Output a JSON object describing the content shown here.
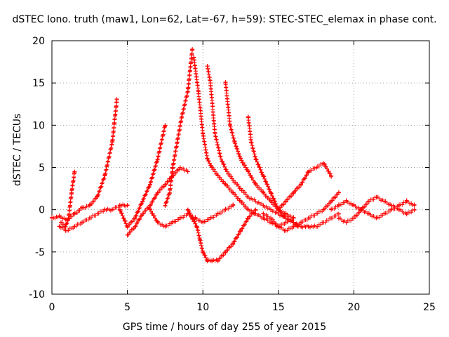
{
  "chart_data": {
    "type": "scatter",
    "title": "dSTEC Iono. truth (maw1, Lon=62, Lat=-67, h=59): STEC-STEC_elemax in phase cont.",
    "xlabel": "GPS time / hours of day 255 of year 2015",
    "ylabel": "dSTEC  / TECUs",
    "xlim": [
      0,
      25
    ],
    "ylim": [
      -10,
      20
    ],
    "xticks": [
      "0",
      "5",
      "10",
      "15",
      "20",
      "25"
    ],
    "yticks": [
      "-10",
      "-5",
      "0",
      "5",
      "10",
      "15",
      "20"
    ],
    "grid": true,
    "marker": "+",
    "color": "#ff0000",
    "series": [
      {
        "x": [
          0.0,
          0.5,
          1.0,
          1.5,
          2.0,
          2.5,
          3.0,
          3.5,
          4.0,
          4.3
        ],
        "y": [
          -1.0,
          -0.8,
          -1.2,
          -0.5,
          0.2,
          0.5,
          1.5,
          4.0,
          8.0,
          13.0
        ]
      },
      {
        "x": [
          0.6,
          0.9,
          1.1,
          1.3,
          1.5
        ],
        "y": [
          -1.5,
          -2.0,
          -1.0,
          2.0,
          4.5
        ]
      },
      {
        "x": [
          0.5,
          1.0,
          1.5,
          2.0,
          2.5,
          3.0,
          3.5,
          4.0,
          4.5,
          5.0
        ],
        "y": [
          -2.0,
          -2.5,
          -2.0,
          -1.5,
          -1.0,
          -0.5,
          0.0,
          0.0,
          0.5,
          0.5
        ]
      },
      {
        "x": [
          4.5,
          5.0,
          5.5,
          6.0,
          6.5,
          7.0,
          7.5
        ],
        "y": [
          0.0,
          -2.0,
          -1.0,
          1.0,
          3.0,
          6.0,
          10.0
        ]
      },
      {
        "x": [
          5.0,
          5.5,
          6.0,
          6.5,
          7.0,
          7.5,
          8.0,
          8.5,
          9.0
        ],
        "y": [
          -3.0,
          -2.0,
          -0.5,
          0.5,
          2.0,
          3.0,
          4.0,
          5.0,
          4.5
        ]
      },
      {
        "x": [
          6.5,
          7.0,
          7.5,
          8.0,
          8.5,
          9.0,
          9.5,
          10.0,
          10.5,
          11.0,
          11.5,
          12.0
        ],
        "y": [
          0.0,
          -1.5,
          -2.0,
          -1.5,
          -1.0,
          -0.5,
          -1.0,
          -1.5,
          -1.0,
          -0.5,
          0.0,
          0.5
        ]
      },
      {
        "x": [
          7.5,
          7.8,
          8.0,
          8.3,
          8.6,
          9.0,
          9.3
        ],
        "y": [
          0.5,
          2.0,
          5.0,
          8.0,
          11.0,
          14.0,
          19.0
        ]
      },
      {
        "x": [
          9.4,
          9.7,
          10.0,
          10.3,
          10.6,
          11.0,
          11.5,
          12.0,
          12.5,
          13.0,
          13.5,
          14.0,
          14.5,
          15.0,
          15.5,
          16.0
        ],
        "y": [
          18.0,
          14.0,
          9.0,
          6.0,
          5.0,
          4.0,
          3.0,
          2.0,
          1.0,
          0.0,
          -0.5,
          -1.0,
          -1.5,
          -2.0,
          -1.5,
          -1.0
        ]
      },
      {
        "x": [
          9.0,
          9.3,
          9.6,
          9.8,
          10.0,
          10.3,
          10.6,
          11.0,
          11.5,
          12.0,
          12.5,
          13.0,
          13.5
        ],
        "y": [
          0.0,
          -1.0,
          -2.0,
          -3.5,
          -5.0,
          -6.0,
          -6.0,
          -6.0,
          -5.0,
          -4.0,
          -2.5,
          -1.0,
          0.0
        ]
      },
      {
        "x": [
          10.3,
          10.5,
          10.8,
          11.2,
          11.6,
          12.0,
          12.5,
          13.0,
          13.5,
          14.0,
          14.5,
          15.0,
          15.5,
          16.0,
          16.3
        ],
        "y": [
          17.0,
          15.0,
          9.0,
          6.0,
          4.5,
          3.5,
          2.5,
          1.5,
          1.0,
          0.5,
          0.0,
          -0.5,
          -1.0,
          -1.5,
          -2.0
        ]
      },
      {
        "x": [
          11.5,
          11.8,
          12.1,
          12.5,
          13.0,
          13.5,
          14.0,
          14.5,
          15.0,
          15.5,
          16.0
        ],
        "y": [
          15.0,
          10.0,
          8.0,
          6.0,
          4.5,
          3.0,
          2.0,
          1.0,
          0.0,
          -0.5,
          -1.0
        ]
      },
      {
        "x": [
          13.0,
          13.2,
          13.5,
          14.0,
          14.5,
          15.0,
          15.5,
          16.0
        ],
        "y": [
          11.0,
          8.0,
          6.0,
          4.0,
          2.0,
          0.0,
          -1.0,
          -1.5
        ]
      },
      {
        "x": [
          14.0,
          14.5,
          15.0,
          15.5,
          16.0,
          16.5,
          17.0,
          17.5,
          18.0,
          18.5,
          19.0
        ],
        "y": [
          -0.5,
          -1.0,
          -2.0,
          -2.5,
          -2.0,
          -1.5,
          -1.0,
          -0.5,
          0.0,
          1.0,
          2.0
        ]
      },
      {
        "x": [
          15.0,
          15.5,
          16.0,
          16.5,
          17.0,
          17.5,
          18.0,
          18.5
        ],
        "y": [
          0.0,
          1.0,
          2.0,
          3.0,
          4.5,
          5.0,
          5.5,
          4.0
        ]
      },
      {
        "x": [
          15.5,
          16.0,
          16.5,
          17.0,
          17.5,
          18.0,
          18.5,
          19.0
        ],
        "y": [
          -1.0,
          -1.5,
          -2.0,
          -2.0,
          -2.0,
          -1.5,
          -1.0,
          -0.5
        ]
      },
      {
        "x": [
          18.5,
          19.0,
          19.5,
          20.0,
          20.5,
          21.0,
          21.5,
          22.0,
          22.5,
          23.0,
          23.5,
          24.0
        ],
        "y": [
          0.0,
          0.5,
          1.0,
          0.5,
          0.0,
          -0.5,
          -1.0,
          -0.5,
          0.0,
          0.5,
          1.0,
          0.5
        ]
      },
      {
        "x": [
          19.0,
          19.5,
          20.0,
          20.5,
          21.0,
          21.5,
          22.0,
          22.5,
          23.0,
          23.5,
          24.0
        ],
        "y": [
          -1.0,
          -1.5,
          -1.0,
          0.0,
          1.0,
          1.5,
          1.0,
          0.5,
          0.0,
          -0.5,
          0.0
        ]
      }
    ]
  }
}
